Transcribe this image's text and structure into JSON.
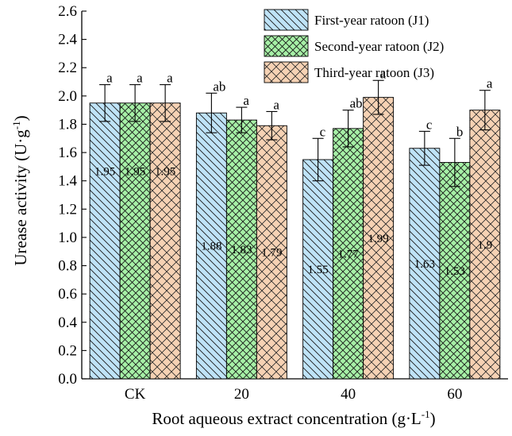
{
  "chart_data": {
    "type": "bar",
    "title": "",
    "xlabel": "Root aqueous extract concentration (g·L",
    "xlabel_sup": "-1",
    "xlabel_suffix": ")",
    "ylabel": "Urease activity (U·g",
    "ylabel_sup": "-1",
    "ylabel_suffix": ")",
    "ylim": [
      0,
      2.6
    ],
    "yticks": [
      "0.0",
      "0.2",
      "0.4",
      "0.6",
      "0.8",
      "1.0",
      "1.2",
      "1.4",
      "1.6",
      "1.8",
      "2.0",
      "2.2",
      "2.4",
      "2.6"
    ],
    "categories": [
      "CK",
      "20",
      "40",
      "60"
    ],
    "legend_position": "top-right",
    "series": [
      {
        "name": "First-year ratoon (J1)",
        "color": "#bfe3f7",
        "pattern": "diagonal-down",
        "values": [
          1.95,
          1.88,
          1.55,
          1.63
        ],
        "errors": [
          0.13,
          0.14,
          0.15,
          0.12
        ],
        "value_labels": [
          "1.95",
          "1.88",
          "1.55",
          "1.63"
        ],
        "significance": [
          "a",
          "ab",
          "c",
          "c"
        ]
      },
      {
        "name": "Second-year ratoon (J2)",
        "color": "#a6f0a6",
        "pattern": "crosshatch",
        "values": [
          1.95,
          1.83,
          1.77,
          1.53
        ],
        "errors": [
          0.13,
          0.09,
          0.13,
          0.17
        ],
        "value_labels": [
          "1.95",
          "1.83",
          "1.77",
          "1.53"
        ],
        "significance": [
          "a",
          "a",
          "ab",
          "b"
        ]
      },
      {
        "name": "Third-year ratoon (J3)",
        "color": "#f6d2b4",
        "pattern": "crosshatch-fine",
        "values": [
          1.95,
          1.79,
          1.99,
          1.9
        ],
        "errors": [
          0.13,
          0.1,
          0.12,
          0.14
        ],
        "value_labels": [
          "1.95",
          "1.79",
          "1.99",
          "1.9"
        ],
        "significance": [
          "a",
          "a",
          "a",
          "a"
        ]
      }
    ]
  }
}
